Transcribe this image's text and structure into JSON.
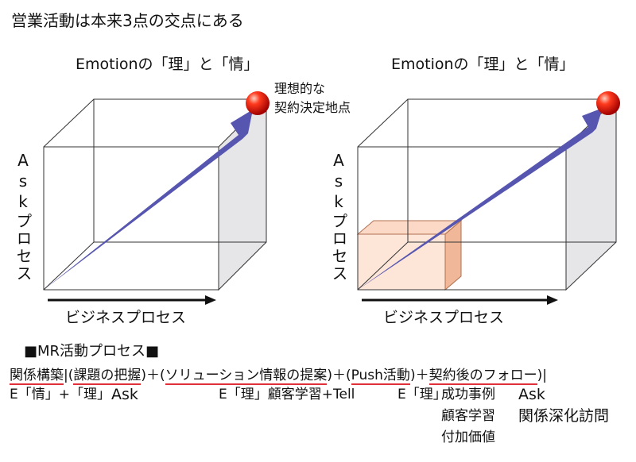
{
  "title": "営業活動は本来3点の交点にある",
  "diagrams": [
    {
      "heading": "Emotionの「理」と「情」",
      "y_axis": "Askプロセス",
      "x_axis": "ビジネスプロセス",
      "annotation": [
        "理想的な",
        "契約決定地点"
      ]
    },
    {
      "heading": "Emotionの「理」と「情」",
      "y_axis": "Askプロセス",
      "x_axis": "ビジネスプロセス"
    }
  ],
  "process": {
    "heading": "■MR活動プロセス■",
    "segments": [
      "関係構築",
      "|(",
      "課題の把握",
      ")＋(",
      "ソリューション情報の提案",
      ")＋(",
      "Push活動",
      ")＋",
      "契約後のフォロー",
      ")|"
    ],
    "notes": [
      [
        "E「情」+「理」"
      ],
      [
        "Ask"
      ],
      [
        "E「理」顧客学習+Tell"
      ],
      [
        "E「理」"
      ],
      [
        "成功事例",
        "顧客学習",
        "付加価値"
      ],
      [
        "Ask",
        "関係深化訪問"
      ]
    ]
  }
}
